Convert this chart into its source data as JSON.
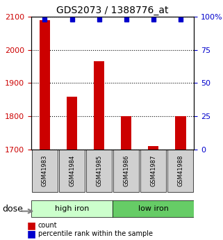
{
  "title": "GDS2073 / 1388776_at",
  "samples": [
    "GSM41983",
    "GSM41984",
    "GSM41985",
    "GSM41986",
    "GSM41987",
    "GSM41988"
  ],
  "counts": [
    2090,
    1860,
    1965,
    1800,
    1710,
    1800
  ],
  "percentile_ranks": [
    98,
    98,
    98,
    98,
    98,
    98
  ],
  "ylim_left": [
    1700,
    2100
  ],
  "ylim_right": [
    0,
    100
  ],
  "yticks_left": [
    1700,
    1800,
    1900,
    2000,
    2100
  ],
  "yticks_right": [
    0,
    25,
    50,
    75,
    100
  ],
  "ytick_labels_right": [
    "0",
    "25",
    "50",
    "75",
    "100%"
  ],
  "bar_color": "#cc0000",
  "dot_color": "#0000cc",
  "groups": [
    {
      "label": "high iron",
      "indices": [
        0,
        1,
        2
      ],
      "color": "#ccffcc"
    },
    {
      "label": "low iron",
      "indices": [
        3,
        4,
        5
      ],
      "color": "#66cc66"
    }
  ],
  "dose_label": "dose",
  "legend_items": [
    {
      "label": "count",
      "color": "#cc0000",
      "marker": "s"
    },
    {
      "label": "percentile rank within the sample",
      "color": "#0000cc",
      "marker": "s"
    }
  ],
  "grid_color": "#000000",
  "background_color": "#ffffff",
  "plot_bg": "#ffffff",
  "tick_label_color_left": "#cc0000",
  "tick_label_color_right": "#0000cc"
}
